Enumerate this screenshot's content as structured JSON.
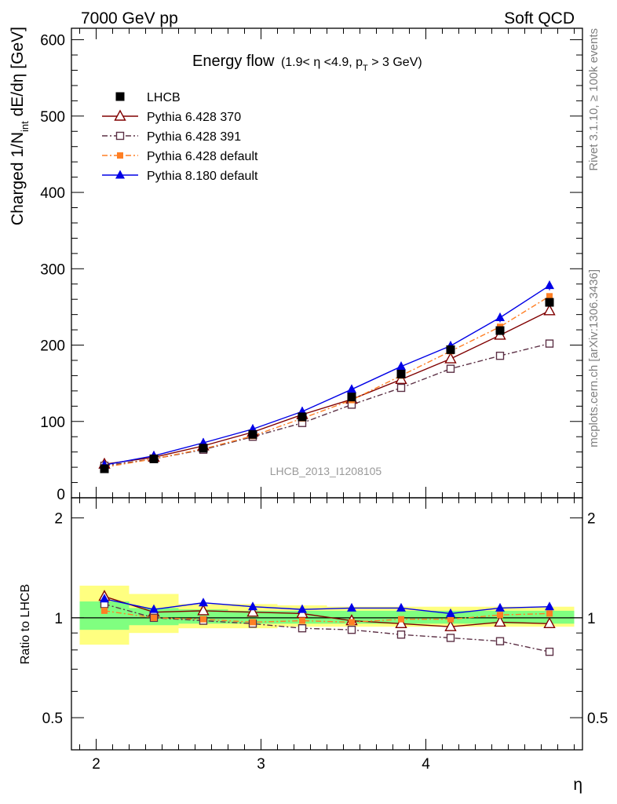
{
  "header": {
    "left": "7000 GeV pp",
    "right": "Soft QCD"
  },
  "title": {
    "main": "Energy flow",
    "cond_a": "(1.9< η <4.9, p",
    "cond_sub": "T",
    "cond_b": " > 3 GeV)"
  },
  "ylabel_main": {
    "a": "Charged 1/N",
    "sub": "int",
    "b": " dE/dη [GeV]"
  },
  "ylabel_ratio": "Ratio to LHCB",
  "xlabel": "η",
  "analysis_tag": "LHCB_2013_I1208105",
  "side_text": {
    "top": "Rivet 3.1.10, ≥ 100k events",
    "bottom": "mcplots.cern.ch [arXiv:1306.3436]"
  },
  "colors": {
    "data": "#000000",
    "p370": "#800000",
    "p391": "#5c3045",
    "p6def": "#ff7f24",
    "p8def": "#0000e6",
    "band_inner": "#80ff80",
    "band_outer": "#ffff80"
  },
  "chart_data": [
    {
      "type": "line",
      "title": "Energy flow (1.9< η <4.9, pT > 3 GeV)",
      "xlabel": "η",
      "ylabel": "Charged 1/Nint dE/dη [GeV]",
      "xlim": [
        1.85,
        4.95
      ],
      "ylim": [
        0,
        615
      ],
      "xticks": [
        2,
        3,
        4
      ],
      "yticks": [
        0,
        100,
        200,
        300,
        400,
        500,
        600
      ],
      "legend_position": "top-left",
      "x": [
        2.05,
        2.35,
        2.65,
        2.95,
        3.25,
        3.55,
        3.85,
        4.15,
        4.45,
        4.75
      ],
      "series": [
        {
          "name": "LHCB",
          "marker": "filled-square",
          "color": "#000000",
          "values": [
            38,
            51,
            65,
            83,
            106,
            132,
            162,
            194,
            219,
            256
          ]
        },
        {
          "name": "Pythia 6.428 370",
          "marker": "open-triangle",
          "color": "#800000",
          "values": [
            44,
            53,
            68,
            86,
            109,
            129,
            155,
            182,
            213,
            245
          ]
        },
        {
          "name": "Pythia 6.428 391",
          "marker": "open-square",
          "color": "#5c3045",
          "values": [
            42,
            51,
            63,
            80,
            98,
            122,
            144,
            169,
            186,
            202
          ]
        },
        {
          "name": "Pythia 6.428 default",
          "marker": "filled-square-small",
          "color": "#ff7f24",
          "values": [
            40,
            51,
            64,
            81,
            104,
            128,
            160,
            192,
            224,
            264
          ]
        },
        {
          "name": "Pythia 8.180 default",
          "marker": "filled-triangle",
          "color": "#0000e6",
          "values": [
            43,
            55,
            72,
            90,
            113,
            142,
            172,
            199,
            236,
            278
          ]
        }
      ]
    },
    {
      "type": "line",
      "ylabel": "Ratio to LHCB",
      "xlabel": "η",
      "xlim": [
        1.85,
        4.95
      ],
      "ylim": [
        0.4,
        2.3
      ],
      "log_y": true,
      "yticks": [
        0.5,
        1,
        2
      ],
      "reference_line": 1,
      "x": [
        2.05,
        2.35,
        2.65,
        2.95,
        3.25,
        3.55,
        3.85,
        4.15,
        4.45,
        4.75
      ],
      "band_edges": [
        1.9,
        2.2,
        2.5,
        2.8,
        3.1,
        3.4,
        3.7,
        4.0,
        4.3,
        4.6,
        4.9
      ],
      "band_inner": [
        [
          0.92,
          1.12
        ],
        [
          0.95,
          1.07
        ],
        [
          0.96,
          1.06
        ],
        [
          0.96,
          1.05
        ],
        [
          0.96,
          1.05
        ],
        [
          0.96,
          1.05
        ],
        [
          0.96,
          1.05
        ],
        [
          0.96,
          1.05
        ],
        [
          0.96,
          1.05
        ],
        [
          0.96,
          1.05
        ]
      ],
      "band_outer": [
        [
          0.83,
          1.25
        ],
        [
          0.9,
          1.18
        ],
        [
          0.93,
          1.1
        ],
        [
          0.93,
          1.1
        ],
        [
          0.94,
          1.09
        ],
        [
          0.94,
          1.08
        ],
        [
          0.94,
          1.08
        ],
        [
          0.94,
          1.08
        ],
        [
          0.94,
          1.08
        ],
        [
          0.94,
          1.08
        ]
      ],
      "series": [
        {
          "name": "Pythia 6.428 370",
          "marker": "open-triangle",
          "color": "#800000",
          "values": [
            1.16,
            1.04,
            1.05,
            1.04,
            1.03,
            0.98,
            0.96,
            0.94,
            0.97,
            0.96
          ]
        },
        {
          "name": "Pythia 6.428 391",
          "marker": "open-square",
          "color": "#5c3045",
          "values": [
            1.1,
            1.0,
            0.98,
            0.96,
            0.93,
            0.92,
            0.89,
            0.87,
            0.85,
            0.79
          ]
        },
        {
          "name": "Pythia 6.428 default",
          "marker": "filled-square-small",
          "color": "#ff7f24",
          "values": [
            1.05,
            1.0,
            0.99,
            0.97,
            0.98,
            0.97,
            0.99,
            0.99,
            1.02,
            1.03
          ]
        },
        {
          "name": "Pythia 8.180 default",
          "marker": "filled-triangle",
          "color": "#0000e6",
          "values": [
            1.14,
            1.06,
            1.11,
            1.08,
            1.06,
            1.07,
            1.07,
            1.03,
            1.07,
            1.08
          ]
        }
      ]
    }
  ]
}
